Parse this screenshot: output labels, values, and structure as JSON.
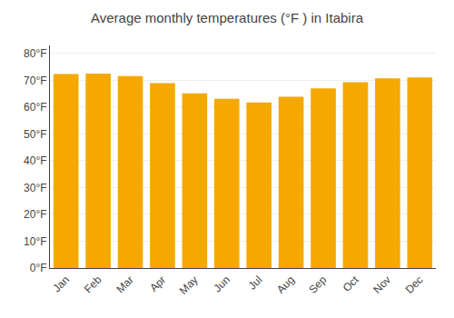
{
  "chart_data": {
    "type": "bar",
    "title": "Average monthly temperatures (°F ) in Itabira",
    "categories": [
      "Jan",
      "Feb",
      "Mar",
      "Apr",
      "May",
      "Jun",
      "Jul",
      "Aug",
      "Sep",
      "Oct",
      "Nov",
      "Dec"
    ],
    "values": [
      72.3,
      72.5,
      71.6,
      68.9,
      65.1,
      63.1,
      61.7,
      63.9,
      67.0,
      69.3,
      70.7,
      71.1
    ],
    "color": "#F5A800",
    "ylim": [
      0,
      83
    ],
    "yticks": [
      {
        "value": 0,
        "label": "0°F"
      },
      {
        "value": 10,
        "label": "10°F"
      },
      {
        "value": 20,
        "label": "20°F"
      },
      {
        "value": 30,
        "label": "30°F"
      },
      {
        "value": 40,
        "label": "40°F"
      },
      {
        "value": 50,
        "label": "50°F"
      },
      {
        "value": 60,
        "label": "60°F"
      },
      {
        "value": 70,
        "label": "70°F"
      },
      {
        "value": 80,
        "label": "80°F"
      }
    ],
    "grid": true
  }
}
